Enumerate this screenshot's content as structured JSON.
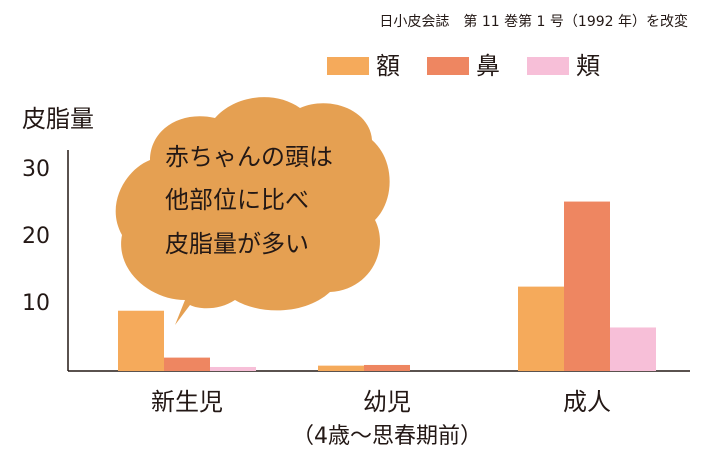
{
  "chart_data": {
    "type": "bar",
    "source": "日小皮会誌　第 11 巻第 1 号（1992 年）を改変",
    "y_label": "皮脂量",
    "annotation": [
      "赤ちゃんの頭は",
      "他部位に比べ",
      "皮脂量が多い"
    ],
    "categories": [
      "新生児",
      "幼児",
      "成人"
    ],
    "category_notes": [
      null,
      "（4歳～思春期前）",
      null
    ],
    "series": [
      {
        "name": "額",
        "color": "#f5aa5b",
        "values": [
          9,
          0.8,
          12.6
        ]
      },
      {
        "name": "鼻",
        "color": "#ee8661",
        "values": [
          2,
          0.9,
          25.3
        ]
      },
      {
        "name": "頬",
        "color": "#f7bfd8",
        "values": [
          0.6,
          0,
          6.5
        ]
      }
    ],
    "ylim": [
      0,
      33
    ],
    "yticks": [
      10,
      20,
      30
    ],
    "grid": false
  }
}
